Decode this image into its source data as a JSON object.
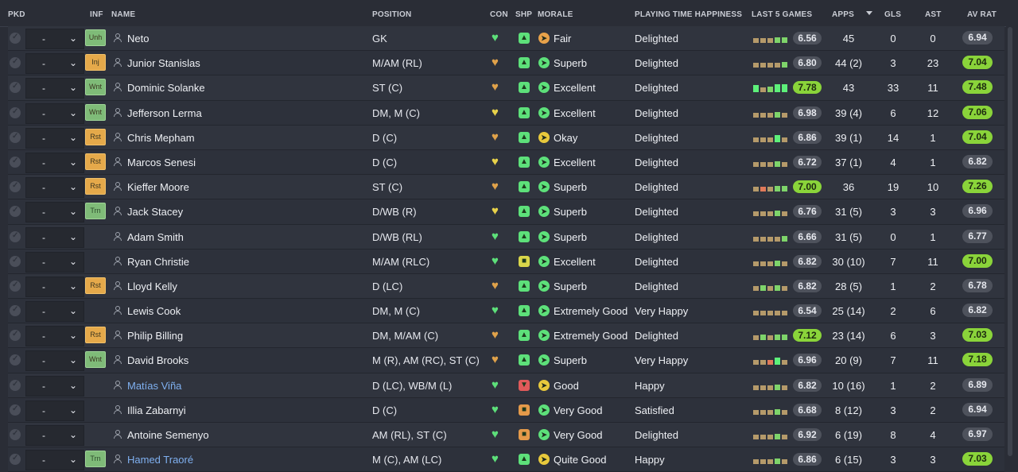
{
  "header": {
    "pkd": "PKD",
    "inf": "INF",
    "name": "NAME",
    "position": "POSITION",
    "con": "CON",
    "shp": "SHP",
    "morale": "MORALE",
    "playing_time": "PLAYING TIME HAPPINESS",
    "last5": "LAST 5 GAMES",
    "apps": "APPS",
    "gls": "GLS",
    "ast": "AST",
    "av_rat": "AV RAT"
  },
  "select_value": "-",
  "colors": {
    "accent_green": "#8ad43a",
    "link_blue": "#7fb0f0",
    "orange_tag": "#e5a94a",
    "green_tag": "#7fbb78"
  },
  "players": [
    {
      "inf": "Unh",
      "inf_color": "green",
      "name": "Neto",
      "position": "GK",
      "con": "g",
      "shp": "g",
      "morale_icon": "o",
      "morale": "Fair",
      "pt": "Delighted",
      "last5": [
        1,
        1,
        1,
        2,
        2
      ],
      "last5_heights": [
        0.55,
        0.55,
        0.55,
        0.7,
        0.7
      ],
      "rating": "6.56",
      "rating_hi": false,
      "apps": "45",
      "gls": "0",
      "ast": "0",
      "av_rat": "6.94",
      "av_hi": false
    },
    {
      "inf": "Inj",
      "inf_color": "orange",
      "name": "Junior Stanislas",
      "position": "M/AM (RL)",
      "con": "o",
      "shp": "g",
      "morale_icon": "g",
      "morale": "Superb",
      "pt": "Delighted",
      "last5": [
        1,
        1,
        1,
        1,
        2
      ],
      "last5_heights": [
        0.55,
        0.55,
        0.55,
        0.6,
        0.7
      ],
      "rating": "6.80",
      "rating_hi": false,
      "apps": "44 (2)",
      "gls": "3",
      "ast": "23",
      "av_rat": "7.04",
      "av_hi": true
    },
    {
      "inf": "Wnt",
      "inf_color": "green",
      "name": "Dominic Solanke",
      "position": "ST (C)",
      "con": "o",
      "shp": "g",
      "morale_icon": "g",
      "morale": "Excellent",
      "pt": "Delighted",
      "last5": [
        3,
        1,
        2,
        3,
        3
      ],
      "last5_heights": [
        0.9,
        0.55,
        0.7,
        1,
        1
      ],
      "rating": "7.78",
      "rating_hi": true,
      "apps": "43",
      "gls": "33",
      "ast": "11",
      "av_rat": "7.48",
      "av_hi": true
    },
    {
      "inf": "Wnt",
      "inf_color": "green",
      "name": "Jefferson Lerma",
      "position": "DM, M (C)",
      "con": "y",
      "shp": "g",
      "morale_icon": "g",
      "morale": "Excellent",
      "pt": "Delighted",
      "last5": [
        1,
        1,
        1,
        2,
        1
      ],
      "last5_heights": [
        0.55,
        0.55,
        0.55,
        0.7,
        0.55
      ],
      "rating": "6.98",
      "rating_hi": false,
      "apps": "39 (4)",
      "gls": "6",
      "ast": "12",
      "av_rat": "7.06",
      "av_hi": true
    },
    {
      "inf": "Rst",
      "inf_color": "orange",
      "name": "Chris Mepham",
      "position": "D (C)",
      "con": "o",
      "shp": "g",
      "morale_icon": "y",
      "morale": "Okay",
      "pt": "Delighted",
      "last5": [
        1,
        1,
        1,
        3,
        1
      ],
      "last5_heights": [
        0.55,
        0.55,
        0.55,
        0.9,
        0.55
      ],
      "rating": "6.86",
      "rating_hi": false,
      "apps": "39 (1)",
      "gls": "14",
      "ast": "1",
      "av_rat": "7.04",
      "av_hi": true
    },
    {
      "inf": "Rst",
      "inf_color": "orange",
      "name": "Marcos Senesi",
      "position": "D (C)",
      "con": "y",
      "shp": "g",
      "morale_icon": "g",
      "morale": "Excellent",
      "pt": "Delighted",
      "last5": [
        1,
        1,
        1,
        2,
        1
      ],
      "last5_heights": [
        0.55,
        0.55,
        0.55,
        0.7,
        0.55
      ],
      "rating": "6.72",
      "rating_hi": false,
      "apps": "37 (1)",
      "gls": "4",
      "ast": "1",
      "av_rat": "6.82",
      "av_hi": false
    },
    {
      "inf": "Rst",
      "inf_color": "orange",
      "name": "Kieffer Moore",
      "position": "ST (C)",
      "con": "o",
      "shp": "g",
      "morale_icon": "g",
      "morale": "Superb",
      "pt": "Delighted",
      "last5": [
        1,
        4,
        1,
        2,
        2
      ],
      "last5_heights": [
        0.55,
        0.55,
        0.55,
        0.7,
        0.7
      ],
      "rating": "7.00",
      "rating_hi": true,
      "apps": "36",
      "gls": "19",
      "ast": "10",
      "av_rat": "7.26",
      "av_hi": true
    },
    {
      "inf": "Trn",
      "inf_color": "green",
      "name": "Jack Stacey",
      "position": "D/WB (R)",
      "con": "y",
      "shp": "g",
      "morale_icon": "g",
      "morale": "Superb",
      "pt": "Delighted",
      "last5": [
        1,
        1,
        1,
        2,
        1
      ],
      "last5_heights": [
        0.55,
        0.55,
        0.55,
        0.7,
        0.55
      ],
      "rating": "6.76",
      "rating_hi": false,
      "apps": "31 (5)",
      "gls": "3",
      "ast": "3",
      "av_rat": "6.96",
      "av_hi": false
    },
    {
      "inf": "",
      "inf_color": "",
      "name": "Adam Smith",
      "position": "D/WB (RL)",
      "con": "g",
      "shp": "g",
      "morale_icon": "g",
      "morale": "Superb",
      "pt": "Delighted",
      "last5": [
        1,
        1,
        1,
        1,
        2
      ],
      "last5_heights": [
        0.55,
        0.55,
        0.55,
        0.55,
        0.7
      ],
      "rating": "6.66",
      "rating_hi": false,
      "apps": "31 (5)",
      "gls": "0",
      "ast": "1",
      "av_rat": "6.77",
      "av_hi": false
    },
    {
      "inf": "",
      "inf_color": "",
      "name": "Ryan Christie",
      "position": "M/AM (RLC)",
      "con": "g",
      "shp": "y",
      "morale_icon": "g",
      "morale": "Excellent",
      "pt": "Delighted",
      "last5": [
        1,
        1,
        1,
        2,
        1
      ],
      "last5_heights": [
        0.55,
        0.55,
        0.55,
        0.7,
        0.55
      ],
      "rating": "6.82",
      "rating_hi": false,
      "apps": "30 (10)",
      "gls": "7",
      "ast": "11",
      "av_rat": "7.00",
      "av_hi": true
    },
    {
      "inf": "Rst",
      "inf_color": "orange",
      "name": "Lloyd Kelly",
      "position": "D (LC)",
      "con": "o",
      "shp": "g",
      "morale_icon": "g",
      "morale": "Superb",
      "pt": "Delighted",
      "last5": [
        1,
        2,
        1,
        2,
        1
      ],
      "last5_heights": [
        0.55,
        0.7,
        0.55,
        0.7,
        0.55
      ],
      "rating": "6.82",
      "rating_hi": false,
      "apps": "28 (5)",
      "gls": "1",
      "ast": "2",
      "av_rat": "6.78",
      "av_hi": false
    },
    {
      "inf": "",
      "inf_color": "",
      "name": "Lewis Cook",
      "position": "DM, M (C)",
      "con": "g",
      "shp": "g",
      "morale_icon": "g",
      "morale": "Extremely Good",
      "pt": "Very Happy",
      "last5": [
        1,
        1,
        1,
        1,
        1
      ],
      "last5_heights": [
        0.55,
        0.55,
        0.55,
        0.55,
        0.55
      ],
      "rating": "6.54",
      "rating_hi": false,
      "apps": "25 (14)",
      "gls": "2",
      "ast": "6",
      "av_rat": "6.82",
      "av_hi": false
    },
    {
      "inf": "Rst",
      "inf_color": "orange",
      "name": "Philip Billing",
      "position": "DM, M/AM (C)",
      "con": "o",
      "shp": "g",
      "morale_icon": "g",
      "morale": "Extremely Good",
      "pt": "Delighted",
      "last5": [
        1,
        2,
        1,
        2,
        2
      ],
      "last5_heights": [
        0.55,
        0.7,
        0.55,
        0.7,
        0.7
      ],
      "rating": "7.12",
      "rating_hi": true,
      "apps": "23 (14)",
      "gls": "6",
      "ast": "3",
      "av_rat": "7.03",
      "av_hi": true
    },
    {
      "inf": "Wnt",
      "inf_color": "green",
      "name": "David Brooks",
      "position": "M (R), AM (RC), ST (C)",
      "con": "o",
      "shp": "g",
      "morale_icon": "g",
      "morale": "Superb",
      "pt": "Very Happy",
      "last5": [
        1,
        1,
        4,
        3,
        1
      ],
      "last5_heights": [
        0.55,
        0.55,
        0.55,
        0.9,
        0.55
      ],
      "rating": "6.96",
      "rating_hi": false,
      "apps": "20 (9)",
      "gls": "7",
      "ast": "11",
      "av_rat": "7.18",
      "av_hi": true
    },
    {
      "inf": "",
      "inf_color": "",
      "name": "Matías Viña",
      "name_link": true,
      "position": "D (LC), WB/M (L)",
      "con": "g",
      "shp": "r",
      "morale_icon": "y",
      "morale": "Good",
      "pt": "Happy",
      "last5": [
        1,
        1,
        1,
        2,
        1
      ],
      "last5_heights": [
        0.55,
        0.55,
        0.55,
        0.7,
        0.55
      ],
      "rating": "6.82",
      "rating_hi": false,
      "apps": "10 (16)",
      "gls": "1",
      "ast": "2",
      "av_rat": "6.89",
      "av_hi": false
    },
    {
      "inf": "",
      "inf_color": "",
      "name": "Illia Zabarnyi",
      "position": "D (C)",
      "con": "g",
      "shp": "o",
      "morale_icon": "g",
      "morale": "Very Good",
      "pt": "Satisfied",
      "last5": [
        1,
        1,
        1,
        2,
        1
      ],
      "last5_heights": [
        0.55,
        0.55,
        0.55,
        0.7,
        0.55
      ],
      "rating": "6.68",
      "rating_hi": false,
      "apps": "8 (12)",
      "gls": "3",
      "ast": "2",
      "av_rat": "6.94",
      "av_hi": false
    },
    {
      "inf": "",
      "inf_color": "",
      "name": "Antoine Semenyo",
      "position": "AM (RL), ST (C)",
      "con": "g",
      "shp": "o",
      "morale_icon": "g",
      "morale": "Very Good",
      "pt": "Delighted",
      "last5": [
        1,
        1,
        1,
        2,
        1
      ],
      "last5_heights": [
        0.55,
        0.55,
        0.55,
        0.7,
        0.55
      ],
      "rating": "6.92",
      "rating_hi": false,
      "apps": "6 (19)",
      "gls": "8",
      "ast": "4",
      "av_rat": "6.97",
      "av_hi": false
    },
    {
      "inf": "Trn",
      "inf_color": "green",
      "name": "Hamed Traoré",
      "name_link": true,
      "position": "M (C), AM (LC)",
      "con": "g",
      "shp": "g",
      "morale_icon": "y",
      "morale": "Quite Good",
      "pt": "Happy",
      "last5": [
        1,
        1,
        1,
        2,
        1
      ],
      "last5_heights": [
        0.55,
        0.55,
        0.55,
        0.7,
        0.55
      ],
      "rating": "6.86",
      "rating_hi": false,
      "apps": "6 (15)",
      "gls": "3",
      "ast": "3",
      "av_rat": "7.03",
      "av_hi": true
    }
  ]
}
